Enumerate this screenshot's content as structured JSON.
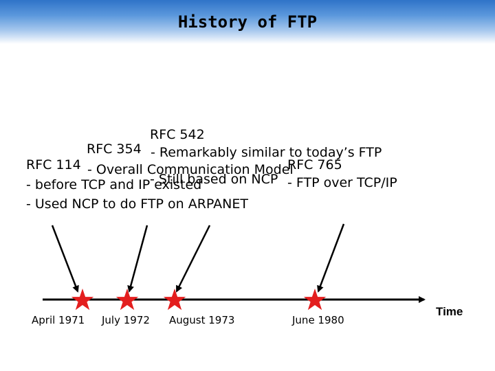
{
  "title": "History of FTP",
  "events": [
    {
      "rfc": "RFC 114",
      "lines": [
        "- before TCP and IP existed",
        "- Used NCP to do FTP on ARPANET"
      ],
      "date": "April 1971"
    },
    {
      "rfc": "RFC 354",
      "lines": [
        "- Overall Communication Model"
      ],
      "date": "July 1972"
    },
    {
      "rfc": "RFC 542",
      "lines": [
        "- Remarkably similar to today’s FTP",
        "- Still based on NCP"
      ],
      "date": "August 1973"
    },
    {
      "rfc": "RFC 765",
      "lines": [
        "- FTP over TCP/IP"
      ],
      "date": "June 1980"
    }
  ],
  "axis_label": "Time",
  "colors": {
    "star": "#e31e1e",
    "title_bar": "#2f73c8",
    "text": "#000000"
  }
}
